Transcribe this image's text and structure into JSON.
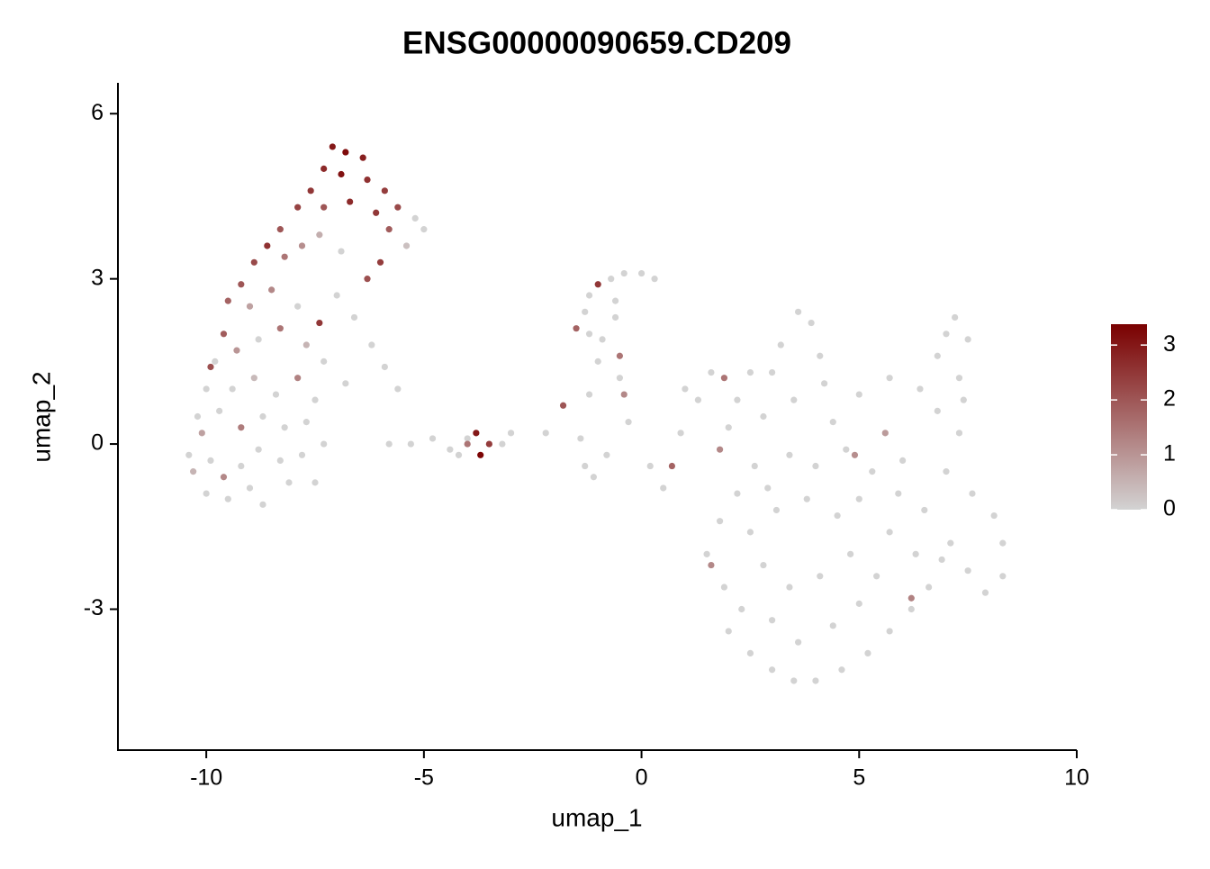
{
  "chart_data": {
    "type": "scatter",
    "title": "ENSG00000090659.CD209",
    "x_label": "umap_1",
    "y_label": "umap_2",
    "xlim": [
      -12.03,
      10
    ],
    "ylim": [
      -5.56,
      6.56
    ],
    "xticks": [
      -10,
      -5,
      0,
      5,
      10
    ],
    "yticks": [
      -3,
      0,
      3,
      6
    ],
    "clim": [
      0,
      3.38
    ],
    "cticks": [
      0,
      1,
      2,
      3
    ],
    "low_color": "#d3d3d3",
    "high_color": "#7a0000",
    "legend": "right",
    "x": [
      -7.1,
      -6.8,
      -6.4,
      -7.3,
      -6.9,
      -6.3,
      -5.9,
      -5.6,
      -5.2,
      -5.0,
      -5.4,
      -7.6,
      -7.9,
      -7.3,
      -6.7,
      -6.1,
      -5.8,
      -6.0,
      -6.3,
      -8.3,
      -8.6,
      -8.9,
      -8.2,
      -7.8,
      -7.4,
      -6.9,
      -9.2,
      -9.5,
      -9.0,
      -8.5,
      -7.9,
      -7.4,
      -7.0,
      -6.6,
      -6.2,
      -5.9,
      -5.6,
      -9.6,
      -9.8,
      -9.3,
      -8.8,
      -8.3,
      -7.7,
      -7.3,
      -6.8,
      -10.0,
      -9.9,
      -9.4,
      -8.9,
      -8.4,
      -7.9,
      -7.5,
      -10.2,
      -9.7,
      -9.2,
      -8.7,
      -8.2,
      -7.7,
      -10.4,
      -10.3,
      -9.9,
      -9.6,
      -9.2,
      -8.8,
      -8.3,
      -7.8,
      -7.5,
      -10.0,
      -9.5,
      -9.0,
      -8.7,
      -8.1,
      -7.3,
      -10.1,
      -5.8,
      -5.3,
      -4.8,
      -4.4,
      -4.0,
      -3.8,
      -3.7,
      -3.5,
      -3.2,
      -3.0,
      -4.2,
      -4.0,
      -2.2,
      -1.8,
      -1.2,
      -1.0,
      -0.7,
      -0.4,
      0.0,
      0.3,
      -0.6,
      -1.3,
      -1.5,
      -1.2,
      -0.9,
      -0.6,
      -0.5,
      -0.5,
      -1.0,
      -0.4,
      -1.2,
      -1.4,
      -1.3,
      -1.1,
      -0.8,
      -0.3,
      0.2,
      0.5,
      0.7,
      0.9,
      1.0,
      1.3,
      1.6,
      1.9,
      2.2,
      2.5,
      1.8,
      2.0,
      2.8,
      3.5,
      4.2,
      5.0,
      5.7,
      6.4,
      6.8,
      7.3,
      3.0,
      3.6,
      3.9,
      3.2,
      4.1,
      4.4,
      5.6,
      6.0,
      7.0,
      7.6,
      8.1,
      8.3,
      8.3,
      7.9,
      7.5,
      7.1,
      6.5,
      5.9,
      5.3,
      4.7,
      4.0,
      3.4,
      2.6,
      2.2,
      1.8,
      1.5,
      1.6,
      1.9,
      2.3,
      2.0,
      2.5,
      3.0,
      3.5,
      4.0,
      4.6,
      5.2,
      5.7,
      6.2,
      6.2,
      6.6,
      3.0,
      3.6,
      4.4,
      5.0,
      5.4,
      4.8,
      4.1,
      3.4,
      2.8,
      2.5,
      3.1,
      3.8,
      4.5,
      5.0,
      5.7,
      6.3,
      6.9,
      4.9,
      2.9,
      6.8,
      7.0,
      7.2,
      7.5,
      7.3,
      7.4
    ],
    "y": [
      5.4,
      5.3,
      5.2,
      5.0,
      4.9,
      4.8,
      4.6,
      4.3,
      4.1,
      3.9,
      3.6,
      4.6,
      4.3,
      4.3,
      4.4,
      4.2,
      3.9,
      3.3,
      3.0,
      3.9,
      3.6,
      3.3,
      3.4,
      3.6,
      3.8,
      3.5,
      2.9,
      2.6,
      2.5,
      2.8,
      2.5,
      2.2,
      2.7,
      2.3,
      1.8,
      1.4,
      1.0,
      2.0,
      1.5,
      1.7,
      1.9,
      2.1,
      1.8,
      1.5,
      1.1,
      1.0,
      1.4,
      1.0,
      1.2,
      0.9,
      1.2,
      0.8,
      0.5,
      0.6,
      0.3,
      0.5,
      0.3,
      0.4,
      -0.2,
      -0.5,
      -0.3,
      -0.6,
      -0.4,
      -0.1,
      -0.3,
      -0.2,
      -0.7,
      -0.9,
      -1.0,
      -0.8,
      -1.1,
      -0.7,
      0.0,
      0.2,
      0.0,
      0.0,
      0.1,
      -0.1,
      0.1,
      0.2,
      -0.2,
      0.0,
      0.0,
      0.2,
      -0.2,
      0.0,
      0.2,
      0.7,
      2.7,
      2.9,
      3.0,
      3.1,
      3.1,
      3.0,
      2.6,
      2.4,
      2.1,
      2.0,
      1.9,
      2.3,
      1.6,
      1.2,
      1.5,
      0.9,
      0.9,
      0.1,
      -0.4,
      -0.6,
      -0.2,
      0.4,
      -0.4,
      -0.8,
      -0.4,
      0.2,
      1.0,
      0.8,
      1.3,
      1.2,
      0.8,
      1.3,
      -0.1,
      0.3,
      0.5,
      0.8,
      1.1,
      0.9,
      1.2,
      1.0,
      0.6,
      0.2,
      1.3,
      2.4,
      2.2,
      1.8,
      1.6,
      0.4,
      0.2,
      -0.3,
      -0.5,
      -0.9,
      -1.3,
      -1.8,
      -2.4,
      -2.7,
      -2.3,
      -1.8,
      -1.2,
      -0.9,
      -0.5,
      -0.1,
      -0.4,
      -0.2,
      -0.4,
      -0.9,
      -1.4,
      -2.0,
      -2.2,
      -2.6,
      -3.0,
      -3.4,
      -3.8,
      -4.1,
      -4.3,
      -4.3,
      -4.1,
      -3.8,
      -3.4,
      -3.0,
      -2.8,
      -2.6,
      -3.2,
      -3.6,
      -3.3,
      -2.9,
      -2.4,
      -2.0,
      -2.4,
      -2.6,
      -2.2,
      -1.6,
      -1.2,
      -1.0,
      -1.3,
      -1.0,
      -1.6,
      -2.0,
      -2.1,
      -0.2,
      -0.8,
      1.6,
      2.0,
      2.3,
      1.9,
      1.2,
      0.8
    ],
    "values": [
      3.0,
      3.2,
      2.9,
      2.7,
      3.1,
      2.6,
      2.4,
      2.2,
      0,
      0,
      0.3,
      2.5,
      2.3,
      2.0,
      2.7,
      2.5,
      1.9,
      2.4,
      2.1,
      2.0,
      2.6,
      2.2,
      1.5,
      1.1,
      0.6,
      0,
      2.0,
      1.8,
      0.8,
      1.2,
      0,
      2.5,
      0,
      0,
      0,
      0,
      0,
      1.9,
      0,
      1.0,
      0,
      1.5,
      0.5,
      0,
      0,
      0,
      2.1,
      0,
      0.4,
      0,
      1.3,
      0,
      0,
      0,
      1.4,
      0,
      0,
      0,
      0,
      0.5,
      0,
      1.2,
      0,
      0,
      0,
      0,
      0,
      0,
      0,
      0,
      0,
      0,
      0,
      0.8,
      0,
      0,
      0,
      0,
      0,
      3.0,
      3.3,
      2.4,
      0,
      0,
      0,
      1.5,
      0,
      2.0,
      0,
      2.5,
      0,
      0,
      0,
      0,
      0,
      0,
      1.8,
      0,
      0,
      0,
      1.5,
      0,
      0,
      1.2,
      0,
      0,
      0,
      0,
      0,
      0,
      0,
      0,
      1.8,
      0,
      0,
      0,
      0,
      1.5,
      0,
      0,
      1.2,
      0,
      0,
      0,
      0,
      0,
      0,
      0,
      0,
      0,
      0,
      0,
      0,
      0,
      0,
      0,
      0.9,
      0,
      0,
      0,
      0,
      0,
      0,
      0,
      0,
      0,
      0,
      0,
      0,
      0,
      0,
      0,
      0,
      0,
      0,
      0,
      1.2,
      0,
      0,
      0,
      0,
      0,
      0,
      0,
      0,
      0,
      0,
      0,
      1.3,
      0,
      0,
      0,
      0,
      0,
      0,
      0,
      0,
      0,
      0,
      0,
      0,
      0,
      0,
      0,
      0,
      0,
      0,
      1.1,
      0,
      0,
      0,
      0,
      0,
      0,
      0
    ]
  }
}
